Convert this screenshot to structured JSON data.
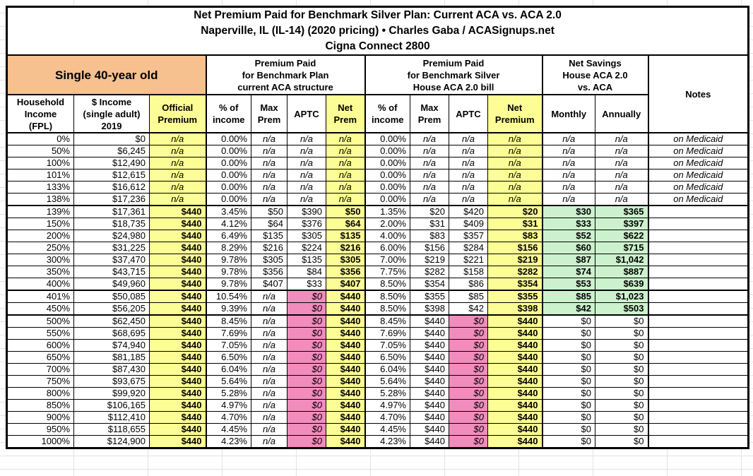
{
  "colors": {
    "header_orange": "#F6C08F",
    "highlight_yellow": "#FDFD96",
    "highlight_pink": "#F18CBC",
    "highlight_green": "#CCF2CD"
  },
  "header": {
    "demographic": "Single 40-year old",
    "group_current_aca": "Premium Paid\nfor Benchmark Plan\ncurrent ACA structure",
    "group_aca2": "Premium Paid\nfor Benchmark Silver\nHouse ACA 2.0 bill",
    "group_savings": "Net Savings\nHouse ACA 2.0\nvs. ACA",
    "notes": "Notes"
  },
  "cell_styles": {
    "medicaid": [
      "num",
      "num",
      "na yellow",
      "num",
      "na",
      "na",
      "na yellow",
      "num",
      "na",
      "na",
      "na yellow",
      "na",
      "na",
      "note"
    ],
    "subsidized": [
      "num",
      "num",
      "num yellow bold",
      "num",
      "num",
      "num",
      "num yellow bold",
      "num",
      "num",
      "num",
      "num yellow bold",
      "num green bold",
      "num green bold",
      "note"
    ],
    "cliff": [
      "num",
      "num",
      "num yellow bold",
      "num",
      "na",
      "num pink italic",
      "num yellow bold",
      "num",
      "num",
      "num",
      "num yellow bold",
      "num green bold",
      "num green bold",
      "note"
    ],
    "flat": [
      "num",
      "num",
      "num yellow bold",
      "num",
      "na",
      "num pink italic",
      "num yellow bold",
      "num",
      "num",
      "num pink italic",
      "num yellow bold",
      "num",
      "num",
      "note"
    ]
  },
  "chart_data": {
    "type": "table",
    "title": "Net Premium Paid for Benchmark Silver Plan: Current ACA vs. ACA 2.0",
    "subtitle": "Naperville, IL (IL-14) (2020 pricing) • Charles Gaba / ACASignups.net",
    "plan": "Cigna Connect 2800",
    "columns": [
      "Household\nIncome\n(FPL)",
      "$ Income\n(single adult)\n2019",
      "Official\nPremium",
      "% of\nincome",
      "Max\nPrem",
      "APTC",
      "Net\nPrem",
      "% of\nincome",
      "Max\nPrem",
      "APTC",
      "Net\nPremium",
      "Monthly",
      "Annually",
      "Notes"
    ],
    "rows": [
      {
        "kind": "medicaid",
        "cells": [
          "0%",
          "$0",
          "n/a",
          "0.00%",
          "n/a",
          "n/a",
          "n/a",
          "0.00%",
          "n/a",
          "n/a",
          "n/a",
          "n/a",
          "n/a",
          "on Medicaid"
        ]
      },
      {
        "kind": "medicaid",
        "cells": [
          "50%",
          "$6,245",
          "n/a",
          "0.00%",
          "n/a",
          "n/a",
          "n/a",
          "0.00%",
          "n/a",
          "n/a",
          "n/a",
          "n/a",
          "n/a",
          "on Medicaid"
        ]
      },
      {
        "kind": "medicaid",
        "cells": [
          "100%",
          "$12,490",
          "n/a",
          "0.00%",
          "n/a",
          "n/a",
          "n/a",
          "0.00%",
          "n/a",
          "n/a",
          "n/a",
          "n/a",
          "n/a",
          "on Medicaid"
        ]
      },
      {
        "kind": "medicaid",
        "cells": [
          "101%",
          "$12,615",
          "n/a",
          "0.00%",
          "n/a",
          "n/a",
          "n/a",
          "0.00%",
          "n/a",
          "n/a",
          "n/a",
          "n/a",
          "n/a",
          "on Medicaid"
        ]
      },
      {
        "kind": "medicaid",
        "cells": [
          "133%",
          "$16,612",
          "n/a",
          "0.00%",
          "n/a",
          "n/a",
          "n/a",
          "0.00%",
          "n/a",
          "n/a",
          "n/a",
          "n/a",
          "n/a",
          "on Medicaid"
        ]
      },
      {
        "kind": "medicaid",
        "cells": [
          "138%",
          "$17,236",
          "n/a",
          "0.00%",
          "n/a",
          "n/a",
          "n/a",
          "0.00%",
          "n/a",
          "n/a",
          "n/a",
          "n/a",
          "n/a",
          "on Medicaid"
        ]
      },
      {
        "kind": "subsidized",
        "cells": [
          "139%",
          "$17,361",
          "$440",
          "3.45%",
          "$50",
          "$390",
          "$50",
          "1.35%",
          "$20",
          "$420",
          "$20",
          "$30",
          "$365",
          ""
        ]
      },
      {
        "kind": "subsidized",
        "cells": [
          "150%",
          "$18,735",
          "$440",
          "4.12%",
          "$64",
          "$376",
          "$64",
          "2.00%",
          "$31",
          "$409",
          "$31",
          "$33",
          "$397",
          ""
        ]
      },
      {
        "kind": "subsidized",
        "cells": [
          "200%",
          "$24,980",
          "$440",
          "6.49%",
          "$135",
          "$305",
          "$135",
          "4.00%",
          "$83",
          "$357",
          "$83",
          "$52",
          "$622",
          ""
        ]
      },
      {
        "kind": "subsidized",
        "cells": [
          "250%",
          "$31,225",
          "$440",
          "8.29%",
          "$216",
          "$224",
          "$216",
          "6.00%",
          "$156",
          "$284",
          "$156",
          "$60",
          "$715",
          ""
        ]
      },
      {
        "kind": "subsidized",
        "cells": [
          "300%",
          "$37,470",
          "$440",
          "9.78%",
          "$305",
          "$135",
          "$305",
          "7.00%",
          "$219",
          "$221",
          "$219",
          "$87",
          "$1,042",
          ""
        ]
      },
      {
        "kind": "subsidized",
        "cells": [
          "350%",
          "$43,715",
          "$440",
          "9.78%",
          "$356",
          "$84",
          "$356",
          "7.75%",
          "$282",
          "$158",
          "$282",
          "$74",
          "$887",
          ""
        ]
      },
      {
        "kind": "subsidized",
        "cells": [
          "400%",
          "$49,960",
          "$440",
          "9.78%",
          "$407",
          "$33",
          "$407",
          "8.50%",
          "$354",
          "$86",
          "$354",
          "$53",
          "$639",
          ""
        ]
      },
      {
        "kind": "cliff",
        "cells": [
          "401%",
          "$50,085",
          "$440",
          "10.54%",
          "n/a",
          "$0",
          "$440",
          "8.50%",
          "$355",
          "$85",
          "$355",
          "$85",
          "$1,023",
          ""
        ]
      },
      {
        "kind": "cliff",
        "cells": [
          "450%",
          "$56,205",
          "$440",
          "9.39%",
          "n/a",
          "$0",
          "$440",
          "8.50%",
          "$398",
          "$42",
          "$398",
          "$42",
          "$503",
          ""
        ]
      },
      {
        "kind": "flat",
        "cells": [
          "500%",
          "$62,450",
          "$440",
          "8.45%",
          "n/a",
          "$0",
          "$440",
          "8.45%",
          "$440",
          "$0",
          "$440",
          "$0",
          "$0",
          ""
        ]
      },
      {
        "kind": "flat",
        "cells": [
          "550%",
          "$68,695",
          "$440",
          "7.69%",
          "n/a",
          "$0",
          "$440",
          "7.69%",
          "$440",
          "$0",
          "$440",
          "$0",
          "$0",
          ""
        ]
      },
      {
        "kind": "flat",
        "cells": [
          "600%",
          "$74,940",
          "$440",
          "7.05%",
          "n/a",
          "$0",
          "$440",
          "7.05%",
          "$440",
          "$0",
          "$440",
          "$0",
          "$0",
          ""
        ]
      },
      {
        "kind": "flat",
        "cells": [
          "650%",
          "$81,185",
          "$440",
          "6.50%",
          "n/a",
          "$0",
          "$440",
          "6.50%",
          "$440",
          "$0",
          "$440",
          "$0",
          "$0",
          ""
        ]
      },
      {
        "kind": "flat",
        "cells": [
          "700%",
          "$87,430",
          "$440",
          "6.04%",
          "n/a",
          "$0",
          "$440",
          "6.04%",
          "$440",
          "$0",
          "$440",
          "$0",
          "$0",
          ""
        ]
      },
      {
        "kind": "flat",
        "cells": [
          "750%",
          "$93,675",
          "$440",
          "5.64%",
          "n/a",
          "$0",
          "$440",
          "5.64%",
          "$440",
          "$0",
          "$440",
          "$0",
          "$0",
          ""
        ]
      },
      {
        "kind": "flat",
        "cells": [
          "800%",
          "$99,920",
          "$440",
          "5.28%",
          "n/a",
          "$0",
          "$440",
          "5.28%",
          "$440",
          "$0",
          "$440",
          "$0",
          "$0",
          ""
        ]
      },
      {
        "kind": "flat",
        "cells": [
          "850%",
          "$106,165",
          "$440",
          "4.97%",
          "n/a",
          "$0",
          "$440",
          "4.97%",
          "$440",
          "$0",
          "$440",
          "$0",
          "$0",
          ""
        ]
      },
      {
        "kind": "flat",
        "cells": [
          "900%",
          "$112,410",
          "$440",
          "4.70%",
          "n/a",
          "$0",
          "$440",
          "4.70%",
          "$440",
          "$0",
          "$440",
          "$0",
          "$0",
          ""
        ]
      },
      {
        "kind": "flat",
        "cells": [
          "950%",
          "$118,655",
          "$440",
          "4.45%",
          "n/a",
          "$0",
          "$440",
          "4.45%",
          "$440",
          "$0",
          "$440",
          "$0",
          "$0",
          ""
        ]
      },
      {
        "kind": "flat",
        "cells": [
          "1000%",
          "$124,900",
          "$440",
          "4.23%",
          "n/a",
          "$0",
          "$440",
          "4.23%",
          "$440",
          "$0",
          "$440",
          "$0",
          "$0",
          ""
        ]
      }
    ]
  }
}
